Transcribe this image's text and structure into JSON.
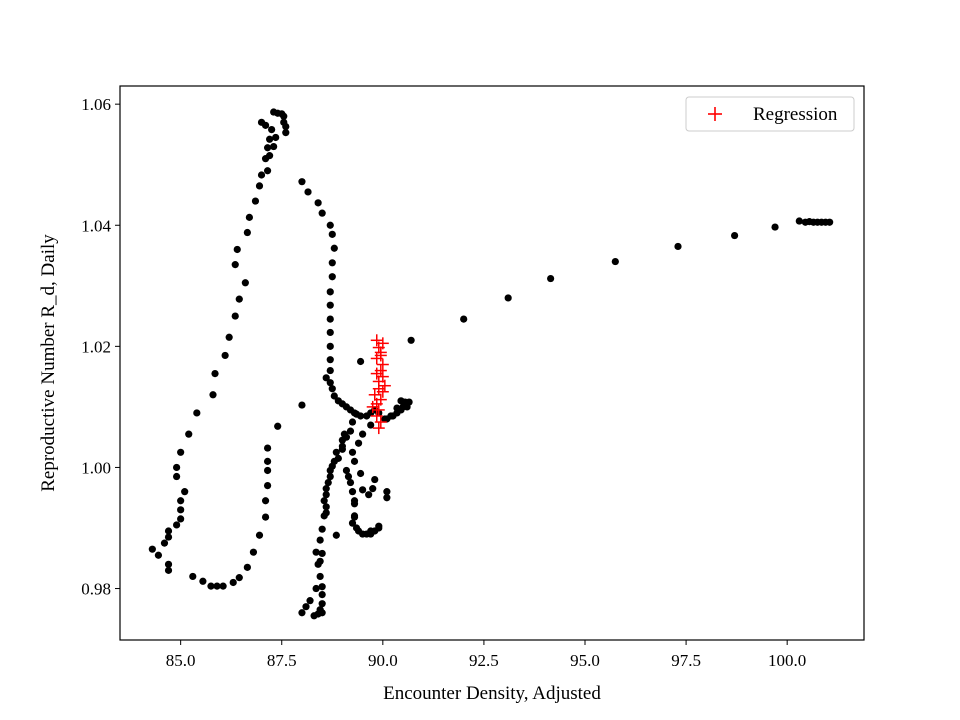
{
  "chart_data": {
    "type": "scatter",
    "title": "",
    "xlabel": "Encounter Density, Adjusted",
    "ylabel": "Reproductive Number R_d, Daily",
    "xlim": [
      83.5,
      101.9
    ],
    "ylim": [
      0.9715,
      1.063
    ],
    "grid": false,
    "legend_position": "top-right",
    "x_ticks": [
      85.0,
      87.5,
      90.0,
      92.5,
      95.0,
      97.5,
      100.0
    ],
    "x_tick_labels": [
      "85.0",
      "87.5",
      "90.0",
      "92.5",
      "95.0",
      "97.5",
      "100.0"
    ],
    "y_ticks": [
      0.98,
      1.0,
      1.02,
      1.04,
      1.06
    ],
    "y_tick_labels": [
      "0.98",
      "1.00",
      "1.02",
      "1.04",
      "1.06"
    ],
    "series": [
      {
        "name": "",
        "marker": "circle",
        "color": "#000000",
        "in_legend": false,
        "points": [
          [
            84.3,
            0.9865
          ],
          [
            84.45,
            0.9855
          ],
          [
            84.6,
            0.9875
          ],
          [
            84.7,
            0.9895
          ],
          [
            84.7,
            0.9885
          ],
          [
            84.7,
            0.984
          ],
          [
            84.7,
            0.983
          ],
          [
            84.9,
            0.9905
          ],
          [
            85.0,
            0.9915
          ],
          [
            85.0,
            0.993
          ],
          [
            85.0,
            0.9945
          ],
          [
            85.1,
            0.996
          ],
          [
            84.9,
            0.9985
          ],
          [
            84.9,
            1.0
          ],
          [
            85.0,
            1.0025
          ],
          [
            85.2,
            1.0055
          ],
          [
            85.4,
            1.009
          ],
          [
            85.8,
            1.012
          ],
          [
            85.85,
            1.0155
          ],
          [
            86.1,
            1.0185
          ],
          [
            86.2,
            1.0215
          ],
          [
            86.35,
            1.025
          ],
          [
            86.45,
            1.0278
          ],
          [
            86.6,
            1.0305
          ],
          [
            86.35,
            1.0335
          ],
          [
            86.4,
            1.036
          ],
          [
            86.65,
            1.0388
          ],
          [
            86.7,
            1.0413
          ],
          [
            86.85,
            1.044
          ],
          [
            86.95,
            1.0465
          ],
          [
            87.0,
            1.0483
          ],
          [
            87.15,
            1.049
          ],
          [
            87.1,
            1.051
          ],
          [
            87.2,
            1.0515
          ],
          [
            87.15,
            1.0528
          ],
          [
            87.3,
            1.053
          ],
          [
            87.2,
            1.0542
          ],
          [
            87.35,
            1.0545
          ],
          [
            87.25,
            1.0558
          ],
          [
            87.1,
            1.0565
          ],
          [
            87.0,
            1.057
          ],
          [
            87.4,
            1.0585
          ],
          [
            87.5,
            1.0584
          ],
          [
            87.55,
            1.058
          ],
          [
            87.55,
            1.057
          ],
          [
            87.6,
            1.0563
          ],
          [
            87.6,
            1.0553
          ],
          [
            87.3,
            1.0587
          ],
          [
            85.3,
            0.982
          ],
          [
            85.55,
            0.9812
          ],
          [
            85.75,
            0.9804
          ],
          [
            85.9,
            0.9804
          ],
          [
            86.05,
            0.9804
          ],
          [
            86.3,
            0.981
          ],
          [
            86.45,
            0.9818
          ],
          [
            86.65,
            0.9835
          ],
          [
            86.8,
            0.986
          ],
          [
            86.95,
            0.9888
          ],
          [
            87.1,
            0.9918
          ],
          [
            87.1,
            0.9945
          ],
          [
            87.15,
            0.997
          ],
          [
            87.15,
            0.9995
          ],
          [
            87.15,
            1.001
          ],
          [
            87.15,
            1.0032
          ],
          [
            87.4,
            1.0068
          ],
          [
            88.0,
            1.0103
          ],
          [
            88.0,
            1.0472
          ],
          [
            88.15,
            1.0455
          ],
          [
            88.4,
            1.0437
          ],
          [
            88.5,
            1.042
          ],
          [
            88.7,
            1.04
          ],
          [
            88.75,
            1.0385
          ],
          [
            88.8,
            1.0362
          ],
          [
            88.75,
            1.0338
          ],
          [
            88.75,
            1.0315
          ],
          [
            88.7,
            1.029
          ],
          [
            88.7,
            1.0268
          ],
          [
            88.7,
            1.0245
          ],
          [
            88.7,
            1.0223
          ],
          [
            88.7,
            1.02
          ],
          [
            88.7,
            1.0178
          ],
          [
            88.7,
            1.016
          ],
          [
            88.6,
            1.0148
          ],
          [
            88.7,
            1.014
          ],
          [
            88.75,
            1.013
          ],
          [
            88.8,
            1.0118
          ],
          [
            88.9,
            1.011
          ],
          [
            89.0,
            1.0105
          ],
          [
            89.1,
            1.01
          ],
          [
            89.2,
            1.0095
          ],
          [
            89.3,
            1.009
          ],
          [
            89.45,
            1.0085
          ],
          [
            89.6,
            1.0085
          ],
          [
            89.7,
            1.009
          ],
          [
            89.8,
            1.0095
          ],
          [
            89.9,
            1.009
          ],
          [
            90.05,
            1.008
          ],
          [
            90.2,
            1.0085
          ],
          [
            90.35,
            1.009
          ],
          [
            90.5,
            1.01
          ],
          [
            90.55,
            1.0108
          ],
          [
            90.45,
            1.011
          ],
          [
            90.65,
            1.0108
          ],
          [
            90.6,
            1.01
          ],
          [
            90.45,
            1.0095
          ],
          [
            90.35,
            1.0098
          ],
          [
            90.25,
            1.0085
          ],
          [
            90.1,
            1.008
          ],
          [
            89.45,
            1.0175
          ],
          [
            90.7,
            1.021
          ],
          [
            92.0,
            1.0245
          ],
          [
            93.1,
            1.028
          ],
          [
            94.15,
            1.0312
          ],
          [
            95.75,
            1.034
          ],
          [
            97.3,
            1.0365
          ],
          [
            98.7,
            1.0383
          ],
          [
            99.7,
            1.0397
          ],
          [
            100.3,
            1.0407
          ],
          [
            100.45,
            1.0405
          ],
          [
            100.55,
            1.0406
          ],
          [
            100.65,
            1.0405
          ],
          [
            100.75,
            1.0405
          ],
          [
            100.85,
            1.0405
          ],
          [
            100.95,
            1.0405
          ],
          [
            101.05,
            1.0405
          ],
          [
            88.0,
            0.976
          ],
          [
            88.1,
            0.977
          ],
          [
            88.2,
            0.978
          ],
          [
            88.3,
            0.9755
          ],
          [
            88.4,
            0.9758
          ],
          [
            88.35,
            0.98
          ],
          [
            88.45,
            0.982
          ],
          [
            88.4,
            0.984
          ],
          [
            88.35,
            0.986
          ],
          [
            88.45,
            0.988
          ],
          [
            88.5,
            0.9898
          ],
          [
            88.55,
            0.992
          ],
          [
            88.55,
            0.9945
          ],
          [
            88.6,
            0.9965
          ],
          [
            88.7,
            0.9985
          ],
          [
            88.75,
            1.0002
          ],
          [
            88.9,
            1.0015
          ],
          [
            89.0,
            1.003
          ],
          [
            89.1,
            1.005
          ],
          [
            89.2,
            1.006
          ],
          [
            89.25,
            1.0075
          ],
          [
            89.35,
            1.0088
          ],
          [
            88.5,
            0.9775
          ],
          [
            88.5,
            0.979
          ],
          [
            88.5,
            0.976
          ],
          [
            88.45,
            0.9765
          ],
          [
            88.5,
            0.9803
          ],
          [
            88.45,
            0.9845
          ],
          [
            88.5,
            0.9858
          ],
          [
            88.6,
            0.9935
          ],
          [
            88.6,
            0.9925
          ],
          [
            88.6,
            0.9955
          ],
          [
            88.65,
            0.9975
          ],
          [
            88.7,
            0.9995
          ],
          [
            88.8,
            1.001
          ],
          [
            88.85,
            1.0025
          ],
          [
            89.0,
            1.0035
          ],
          [
            89.0,
            1.0045
          ],
          [
            89.05,
            1.0055
          ],
          [
            89.1,
            0.9995
          ],
          [
            89.15,
            0.9985
          ],
          [
            89.2,
            0.9975
          ],
          [
            89.25,
            0.996
          ],
          [
            89.3,
            0.9945
          ],
          [
            89.3,
            0.992
          ],
          [
            89.35,
            0.99
          ],
          [
            89.4,
            0.9895
          ],
          [
            89.5,
            0.989
          ],
          [
            89.6,
            0.989
          ],
          [
            89.7,
            0.989
          ],
          [
            89.8,
            0.9895
          ],
          [
            89.9,
            0.99
          ],
          [
            89.9,
            0.9903
          ],
          [
            89.7,
            0.9895
          ],
          [
            88.85,
            0.9888
          ],
          [
            89.5,
            0.9963
          ],
          [
            89.45,
            0.999
          ],
          [
            89.3,
            1.001
          ],
          [
            89.25,
            1.0025
          ],
          [
            89.4,
            1.004
          ],
          [
            89.5,
            1.0055
          ],
          [
            89.7,
            1.007
          ],
          [
            89.8,
            0.998
          ],
          [
            89.75,
            0.9965
          ],
          [
            89.65,
            0.9955
          ],
          [
            90.1,
            0.995
          ],
          [
            90.1,
            0.996
          ],
          [
            89.3,
            0.994
          ],
          [
            89.3,
            0.9918
          ],
          [
            89.25,
            0.9908
          ]
        ]
      },
      {
        "name": "Regression",
        "marker": "plus",
        "color": "#ff0000",
        "in_legend": true,
        "points": [
          [
            89.85,
            1.021
          ],
          [
            90.0,
            1.0205
          ],
          [
            89.9,
            1.0198
          ],
          [
            89.95,
            1.019
          ],
          [
            89.95,
            1.0185
          ],
          [
            89.85,
            1.018
          ],
          [
            90.0,
            1.017
          ],
          [
            89.95,
            1.016
          ],
          [
            89.85,
            1.0155
          ],
          [
            90.0,
            1.015
          ],
          [
            89.9,
            1.0142
          ],
          [
            90.05,
            1.0135
          ],
          [
            89.9,
            1.013
          ],
          [
            90.0,
            1.0125
          ],
          [
            89.8,
            1.012
          ],
          [
            89.95,
            1.0112
          ],
          [
            89.85,
            1.0105
          ],
          [
            89.75,
            1.01
          ],
          [
            89.9,
            1.0095
          ],
          [
            89.85,
            1.0085
          ],
          [
            89.95,
            1.0075
          ],
          [
            89.9,
            1.0065
          ]
        ]
      }
    ]
  }
}
